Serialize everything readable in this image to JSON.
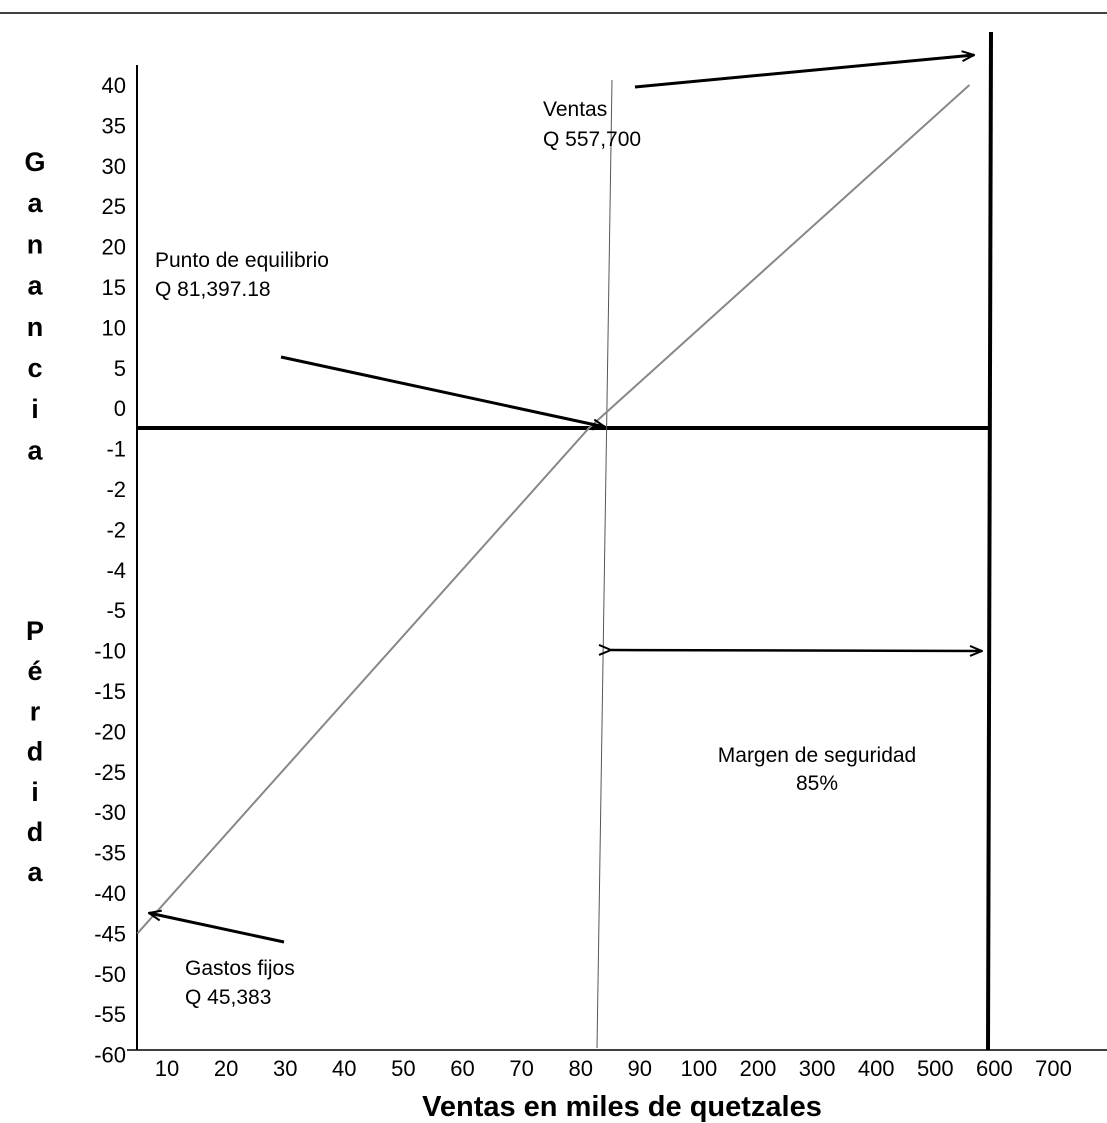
{
  "chart_data": {
    "type": "line",
    "xlabel": "Ventas en miles de quetzales",
    "ylabel_gain": "Ganancia",
    "ylabel_loss": "Pérdida",
    "x_ticks": [
      "10",
      "20",
      "30",
      "40",
      "50",
      "60",
      "70",
      "80",
      "90",
      "100",
      "200",
      "300",
      "400",
      "500",
      "600",
      "700"
    ],
    "y_ticks": [
      "40",
      "35",
      "30",
      "25",
      "20",
      "15",
      "10",
      "5",
      "0",
      "-1",
      "-2",
      "-2",
      "-4",
      "-5",
      "-10",
      "-15",
      "-20",
      "-25",
      "-30",
      "-35",
      "-40",
      "-45",
      "-50",
      "-55",
      "-60"
    ],
    "series": [
      {
        "points": [
          {
            "x": 5,
            "y": -45
          },
          {
            "x": 81.4,
            "y": 0
          },
          {
            "x": 557.7,
            "y": 40
          }
        ]
      }
    ],
    "annotations": {
      "ventas": {
        "label": "Ventas",
        "value": "Q 557,700"
      },
      "equilibrio": {
        "label": "Punto de equilibrio",
        "value": "Q 81,397.18"
      },
      "gastos": {
        "label": "Gastos fijos",
        "value": "Q 45,383"
      },
      "margen": {
        "label": "Margen de seguridad",
        "value": "85%"
      }
    },
    "grid": false,
    "legend": "none"
  }
}
